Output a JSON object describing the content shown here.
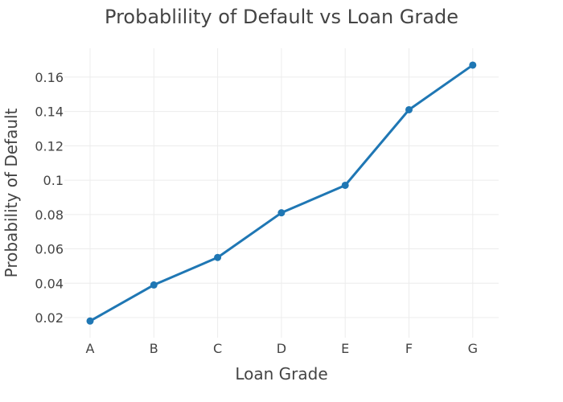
{
  "chart_data": {
    "type": "line",
    "title": "Probablility of Default vs Loan Grade",
    "xlabel": "Loan Grade",
    "ylabel": "Probability of Default",
    "categories": [
      "A",
      "B",
      "C",
      "D",
      "E",
      "F",
      "G"
    ],
    "series": [
      {
        "values": [
          0.018,
          0.039,
          0.055,
          0.081,
          0.097,
          0.141,
          0.167
        ],
        "color": "#1f77b4"
      }
    ],
    "yticks": [
      0.02,
      0.04,
      0.06,
      0.08,
      0.1,
      0.12,
      0.14,
      0.16
    ],
    "ytick_labels": [
      "0.02",
      "0.04",
      "0.06",
      "0.08",
      "0.1",
      "0.12",
      "0.14",
      "0.16"
    ],
    "ylim": [
      0.0083,
      0.1768
    ],
    "grid": true,
    "markers": true
  }
}
